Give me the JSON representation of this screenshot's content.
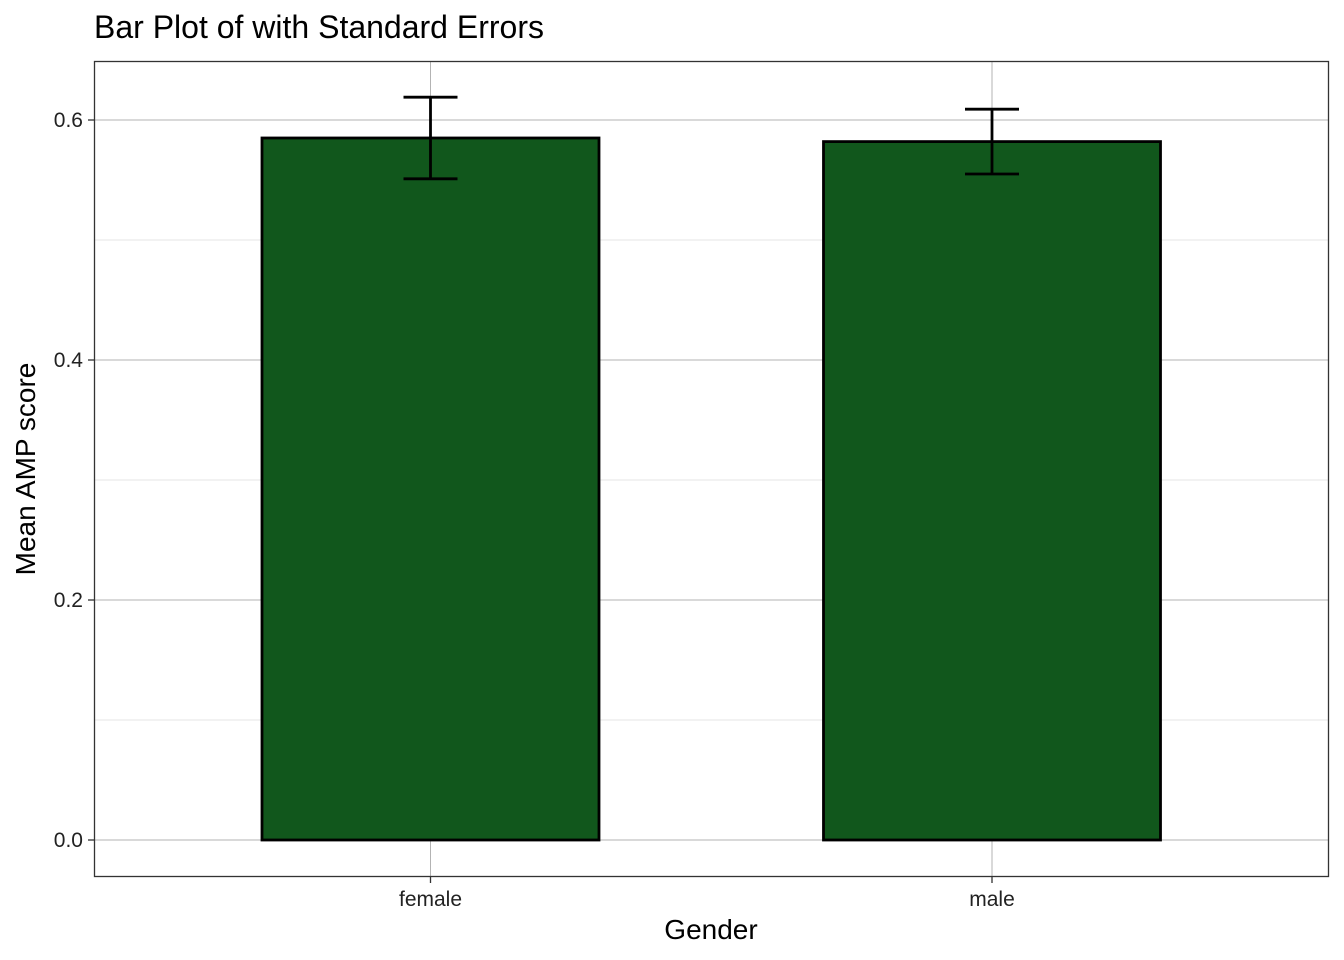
{
  "chart_data": {
    "type": "bar",
    "title": "Bar Plot of with Standard Errors",
    "xlabel": "Gender",
    "ylabel": "Mean AMP score",
    "categories": [
      "female",
      "male"
    ],
    "values": [
      0.585,
      0.582
    ],
    "error_lower": [
      0.551,
      0.555
    ],
    "error_upper": [
      0.619,
      0.609
    ],
    "ylim": [
      -0.03,
      0.65
    ],
    "yticks": [
      0.0,
      0.2,
      0.4,
      0.6
    ],
    "ytick_labels": [
      "0.0",
      "0.2",
      "0.4",
      "0.6"
    ],
    "grid": true,
    "bar_color": "#11571c",
    "bar_edge_color": "#000000",
    "legend": "none"
  }
}
